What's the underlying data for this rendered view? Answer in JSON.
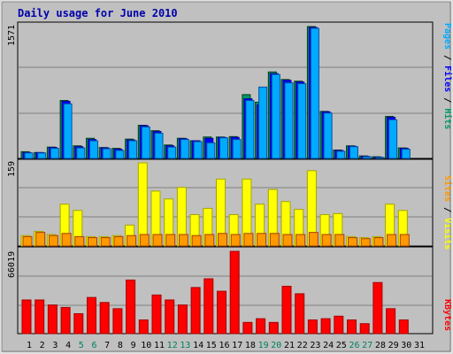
{
  "chart_data": {
    "type": "bar",
    "title": "Daily usage for June 2010",
    "categories": [
      "1",
      "2",
      "3",
      "4",
      "5",
      "6",
      "7",
      "8",
      "9",
      "10",
      "11",
      "12",
      "13",
      "14",
      "15",
      "16",
      "17",
      "18",
      "19",
      "20",
      "21",
      "22",
      "23",
      "24",
      "25",
      "26",
      "27",
      "28",
      "29",
      "30",
      "31"
    ],
    "weekend_days": [
      "5",
      "6",
      "12",
      "13",
      "19",
      "20",
      "26",
      "27"
    ],
    "panels": [
      {
        "id": "hits",
        "label_parts": [
          {
            "text": "Pages",
            "color": "#00aaff"
          },
          {
            "text": " / ",
            "color": "#000000"
          },
          {
            "text": "Files",
            "color": "#0000ff"
          },
          {
            "text": " / ",
            "color": "#000000"
          },
          {
            "text": "Hits",
            "color": "#009966"
          }
        ],
        "ymax_label": "1571",
        "ymax": 1571,
        "series": [
          {
            "name": "Hits",
            "color": "#009966",
            "values": [
              80,
              70,
              135,
              690,
              150,
              240,
              130,
              120,
              230,
              395,
              330,
              160,
              240,
              210,
              255,
              255,
              260,
              760,
              670,
              1030,
              940,
              920,
              1571,
              560,
              100,
              150,
              30,
              20,
              500,
              125,
              0
            ]
          },
          {
            "name": "Files",
            "color": "#0000ff",
            "values": [
              70,
              70,
              130,
              680,
              140,
              225,
              125,
              110,
              220,
              390,
              320,
              150,
              235,
              210,
              240,
              250,
              250,
              710,
              640,
              1010,
              930,
              910,
              1560,
              555,
              95,
              145,
              25,
              15,
              490,
              120,
              0
            ]
          },
          {
            "name": "Pages",
            "color": "#00aaff",
            "values": [
              65,
              65,
              120,
              650,
              125,
              210,
              115,
              95,
              210,
              375,
              300,
              135,
              225,
              200,
              185,
              245,
              225,
              690,
              850,
              1000,
              900,
              890,
              1550,
              540,
              85,
              140,
              20,
              12,
              460,
              110,
              0
            ]
          }
        ]
      },
      {
        "id": "visits",
        "label_parts": [
          {
            "text": "Sites",
            "color": "#ff9900"
          },
          {
            "text": " / ",
            "color": "#000000"
          },
          {
            "text": "Visits",
            "color": "#ffff00"
          }
        ],
        "ymax_label": "159",
        "ymax": 159,
        "series": [
          {
            "name": "Visits",
            "color": "#ffff00",
            "values": [
              20,
              28,
              22,
              80,
              68,
              18,
              18,
              20,
              40,
              159,
              105,
              90,
              112,
              60,
              72,
              128,
              60,
              128,
              80,
              108,
              85,
              70,
              144,
              60,
              62,
              18,
              16,
              18,
              80,
              68,
              0
            ]
          },
          {
            "name": "Sites",
            "color": "#ff9900",
            "values": [
              18,
              26,
              20,
              24,
              18,
              16,
              16,
              18,
              20,
              22,
              22,
              22,
              22,
              20,
              22,
              24,
              22,
              24,
              24,
              24,
              22,
              22,
              26,
              22,
              22,
              16,
              14,
              16,
              22,
              22,
              0
            ]
          }
        ]
      },
      {
        "id": "kbytes",
        "label_parts": [
          {
            "text": "KBytes",
            "color": "#ff0000"
          }
        ],
        "ymax_label": "66019",
        "ymax": 66019,
        "series": [
          {
            "name": "KBytes",
            "color": "#ff0000",
            "values": [
              27000,
              27000,
              23000,
              21000,
              16000,
              29000,
              25000,
              20000,
              43000,
              11000,
              31000,
              27000,
              23000,
              37000,
              44000,
              34000,
              66019,
              9000,
              12000,
              9000,
              38000,
              32000,
              11000,
              12000,
              14000,
              11000,
              8000,
              41000,
              20000,
              11000,
              0
            ]
          }
        ]
      }
    ]
  }
}
